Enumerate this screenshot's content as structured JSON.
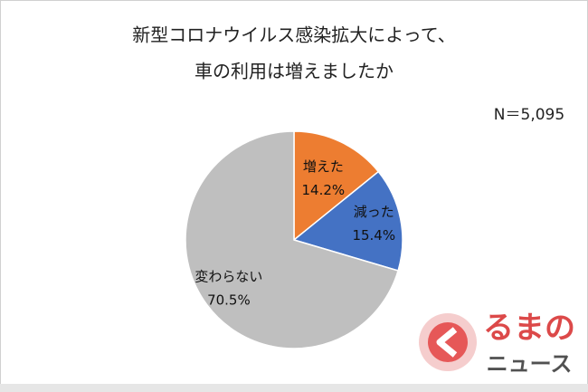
{
  "chart_data": {
    "type": "pie",
    "title": [
      "新型コロナウイルス感染拡大によって、",
      "車の利用は増えましたか"
    ],
    "annotation": "N＝5,095",
    "categories": [
      "増えた",
      "減った",
      "変わらない"
    ],
    "values": [
      14.2,
      15.4,
      70.5
    ],
    "value_labels": [
      "14.2%",
      "15.4%",
      "70.5%"
    ],
    "colors": [
      "#ed7d31",
      "#4472c4",
      "#bfbfbf"
    ]
  },
  "logo": {
    "line1": "るまの",
    "line2": "ニュース"
  }
}
